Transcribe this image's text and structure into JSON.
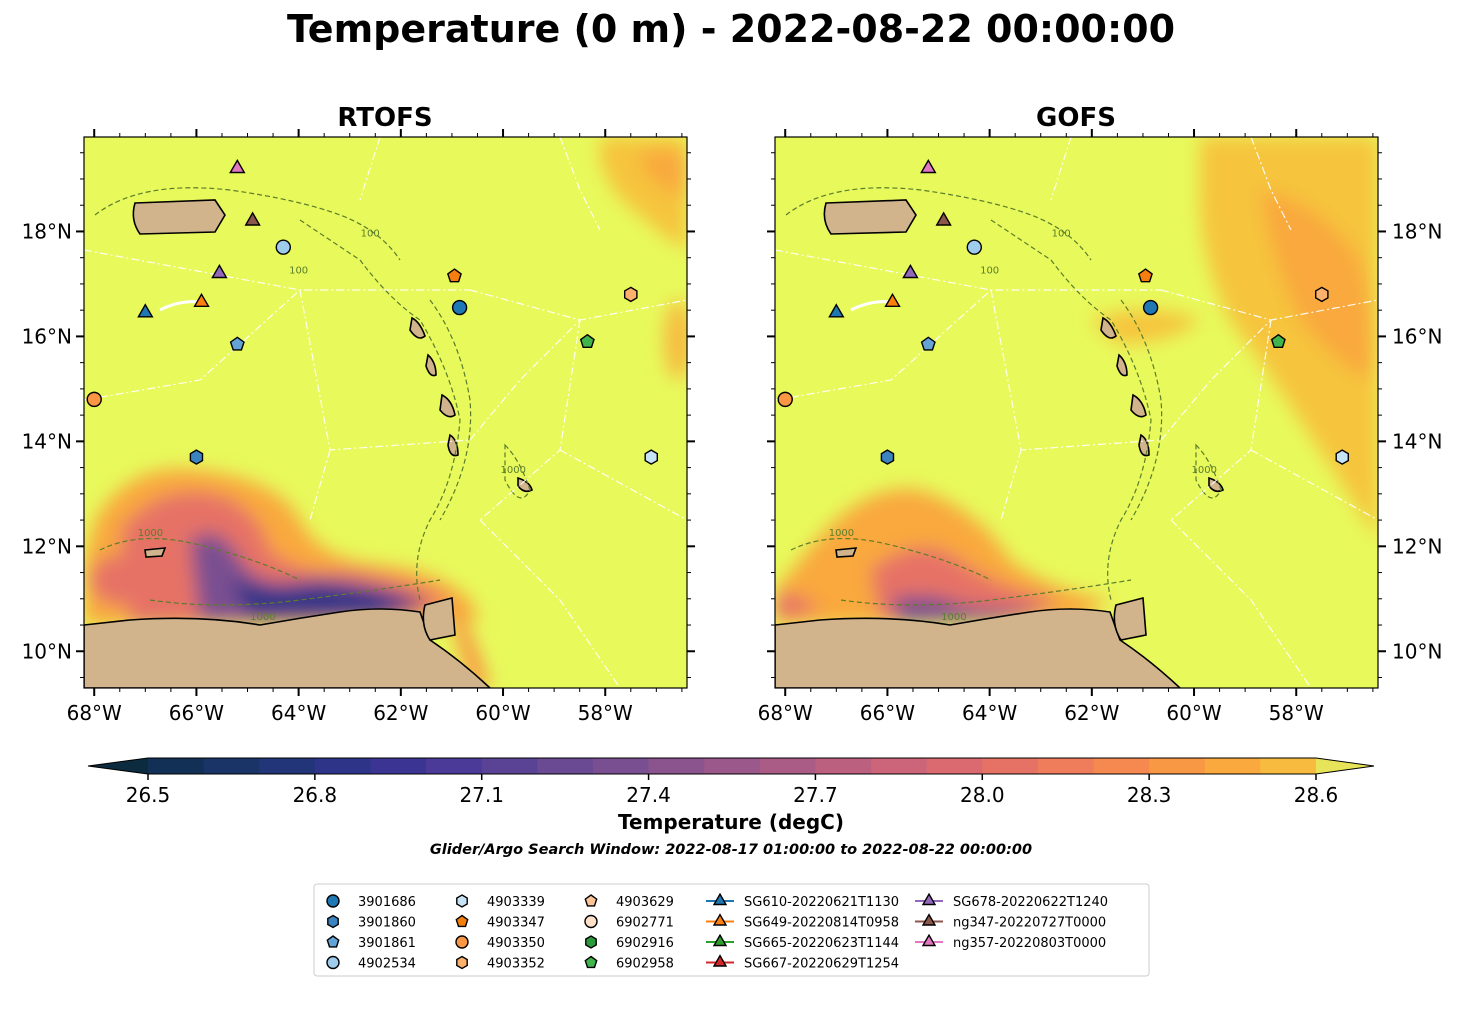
{
  "figure": {
    "title": "Temperature (0 m) - 2022-08-22 00:00:00",
    "subtitle": "Glider/Argo Search Window: 2022-08-17 01:00:00 to 2022-08-22 00:00:00"
  },
  "panels": [
    {
      "id": "rtofs",
      "title": "RTOFS"
    },
    {
      "id": "gofs",
      "title": "GOFS"
    }
  ],
  "axes": {
    "lon_range": [
      -68.2,
      -56.4
    ],
    "lat_range": [
      9.3,
      19.8
    ],
    "lon_ticks": [
      {
        "value": -68,
        "label": "68°W"
      },
      {
        "value": -66,
        "label": "66°W"
      },
      {
        "value": -64,
        "label": "64°W"
      },
      {
        "value": -62,
        "label": "62°W"
      },
      {
        "value": -60,
        "label": "60°W"
      },
      {
        "value": -58,
        "label": "58°W"
      }
    ],
    "lat_ticks": [
      {
        "value": 10,
        "label": "10°N"
      },
      {
        "value": 12,
        "label": "12°N"
      },
      {
        "value": 14,
        "label": "14°N"
      },
      {
        "value": 16,
        "label": "16°N"
      },
      {
        "value": 18,
        "label": "18°N"
      }
    ],
    "contour_labels": [
      "100",
      "1000"
    ]
  },
  "colorbar": {
    "label": "Temperature (degC)",
    "min": 26.5,
    "max": 28.6,
    "step": 0.1,
    "ticks": [
      "26.5",
      "26.8",
      "27.1",
      "27.4",
      "27.7",
      "28.0",
      "28.3",
      "28.6"
    ],
    "colors": [
      "#0d2b3e",
      "#122f55",
      "#1b3468",
      "#233579",
      "#2e3588",
      "#3c3493",
      "#4b3a97",
      "#5a4395",
      "#6a4a93",
      "#7a4f91",
      "#8b548e",
      "#9b588a",
      "#ab5c86",
      "#bc6080",
      "#cc6579",
      "#da6a6f",
      "#e67266",
      "#ef7c5a",
      "#f5894f",
      "#f89845",
      "#f9a93d",
      "#f6bb3f",
      "#efcf48",
      "#e8e45a"
    ]
  },
  "land_color": "#d2b48c",
  "legend": {
    "columns": [
      [
        {
          "label": "3901686",
          "marker": "circle",
          "color": "#1f77b4"
        },
        {
          "label": "3901860",
          "marker": "hexagon",
          "color": "#3c84c0"
        },
        {
          "label": "3901861",
          "marker": "pentagon",
          "color": "#64a3d6"
        },
        {
          "label": "4902534",
          "marker": "circle",
          "color": "#9dccec"
        }
      ],
      [
        {
          "label": "4903339",
          "marker": "hexagon",
          "color": "#c6e4f6"
        },
        {
          "label": "4903347",
          "marker": "pentagon",
          "color": "#f57f0e"
        },
        {
          "label": "4903350",
          "marker": "circle",
          "color": "#fa9644"
        },
        {
          "label": "4903352",
          "marker": "hexagon",
          "color": "#fbb06b"
        }
      ],
      [
        {
          "label": "4903629",
          "marker": "pentagon",
          "color": "#fdc597"
        },
        {
          "label": "6902771",
          "marker": "circle",
          "color": "#fde0c8"
        },
        {
          "label": "6902916",
          "marker": "hexagon",
          "color": "#2a9a3c"
        },
        {
          "label": "6902958",
          "marker": "pentagon",
          "color": "#3fb54c"
        }
      ],
      [
        {
          "label": "SG610-20220621T1130",
          "marker": "triangle",
          "color": "#1f77b4",
          "line": true
        },
        {
          "label": "SG649-20220814T0958",
          "marker": "triangle",
          "color": "#ff7f0e",
          "line": true
        },
        {
          "label": "SG665-20220623T1144",
          "marker": "triangle",
          "color": "#2ca02c",
          "line": true
        },
        {
          "label": "SG667-20220629T1254",
          "marker": "triangle",
          "color": "#d62728",
          "line": true
        }
      ],
      [
        {
          "label": "SG678-20220622T1240",
          "marker": "triangle",
          "color": "#9467bd",
          "line": true
        },
        {
          "label": "ng347-20220727T0000",
          "marker": "triangle",
          "color": "#8c564b",
          "line": true
        },
        {
          "label": "ng357-20220803T0000",
          "marker": "triangle",
          "color": "#e377c2",
          "line": true
        }
      ]
    ]
  },
  "platforms": [
    {
      "label": "3901686",
      "lon": -60.85,
      "lat": 16.55
    },
    {
      "label": "3901860",
      "lon": -66.0,
      "lat": 13.7
    },
    {
      "label": "3901861",
      "lon": -65.2,
      "lat": 15.85
    },
    {
      "label": "4902534",
      "lon": -64.3,
      "lat": 17.7
    },
    {
      "label": "4903339",
      "lon": -57.1,
      "lat": 13.7
    },
    {
      "label": "4903347",
      "lon": -60.95,
      "lat": 17.15
    },
    {
      "label": "4903350",
      "lon": -68.0,
      "lat": 14.8
    },
    {
      "label": "4903352",
      "lon": -57.5,
      "lat": 16.8
    },
    {
      "label": "6902958",
      "lon": -58.35,
      "lat": 15.9
    },
    {
      "label": "SG610-20220621T1130",
      "lon": -67.0,
      "lat": 16.45
    },
    {
      "label": "SG649-20220814T0958",
      "lon": -65.9,
      "lat": 16.65
    },
    {
      "label": "SG678-20220622T1240",
      "lon": -65.55,
      "lat": 17.2
    },
    {
      "label": "ng347-20220727T0000",
      "lon": -64.9,
      "lat": 18.2
    },
    {
      "label": "ng357-20220803T0000",
      "lon": -65.2,
      "lat": 19.2
    }
  ]
}
